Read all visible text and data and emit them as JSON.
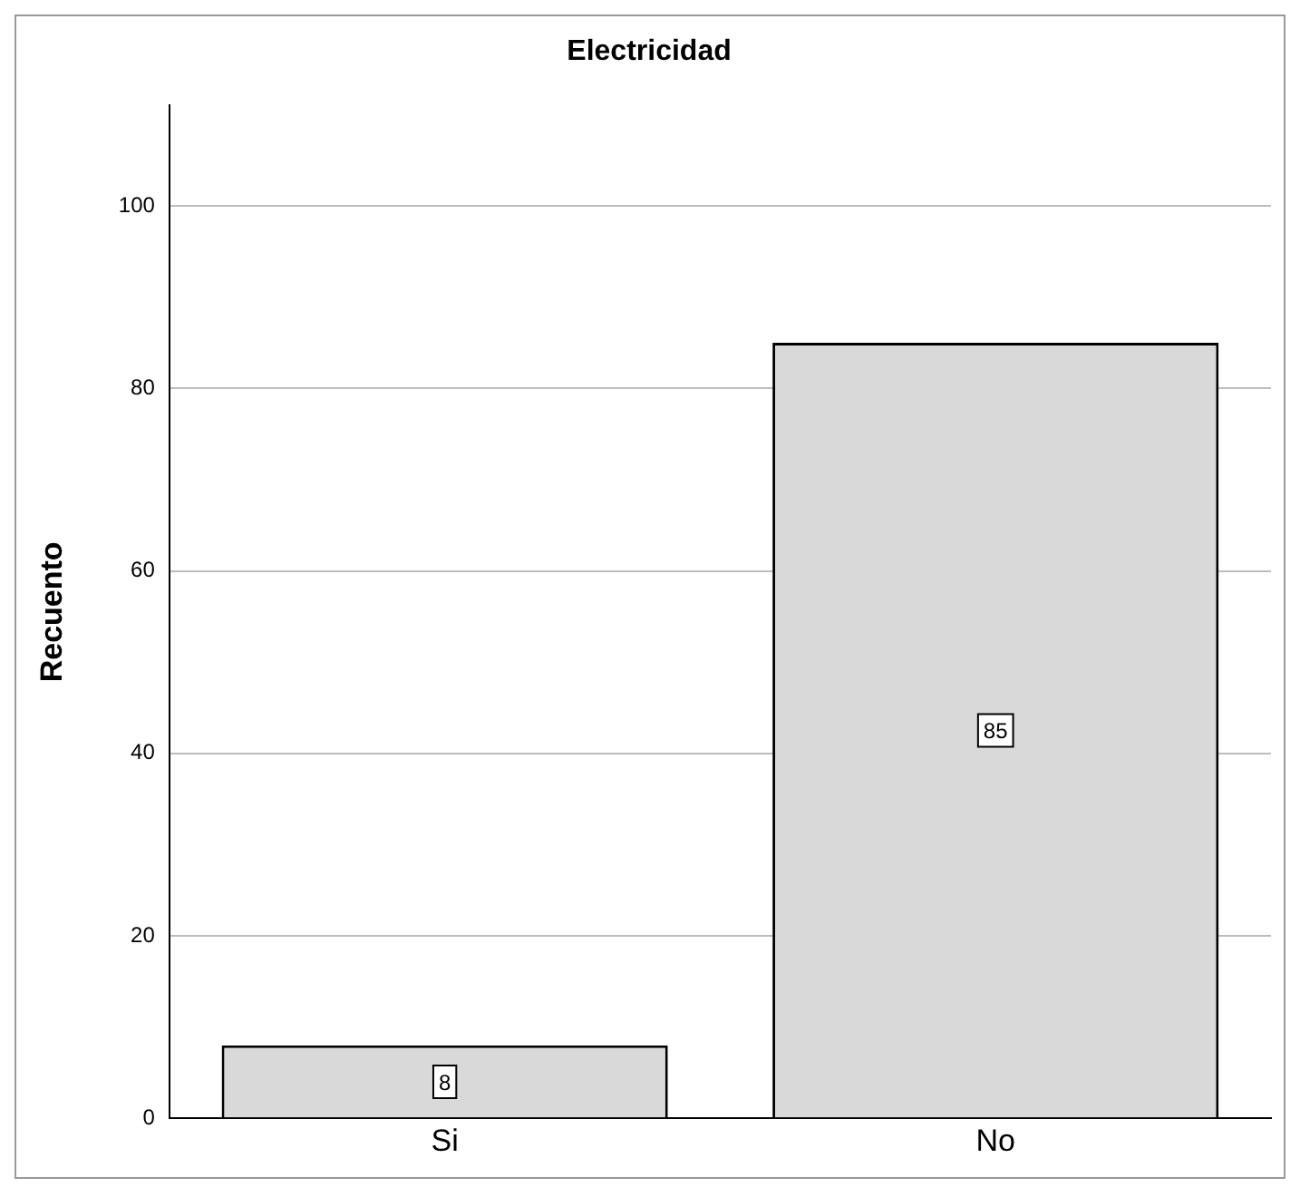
{
  "chart_data": {
    "type": "bar",
    "title": "Electricidad",
    "ylabel": "Recuento",
    "categories": [
      "Si",
      "No"
    ],
    "values": [
      8,
      85
    ],
    "color": "#d9d9d9",
    "ylim": [
      0,
      111
    ],
    "yticks": [
      0,
      20,
      40,
      60,
      80,
      100
    ],
    "grid": "y",
    "data_labels": true,
    "legend": false
  }
}
